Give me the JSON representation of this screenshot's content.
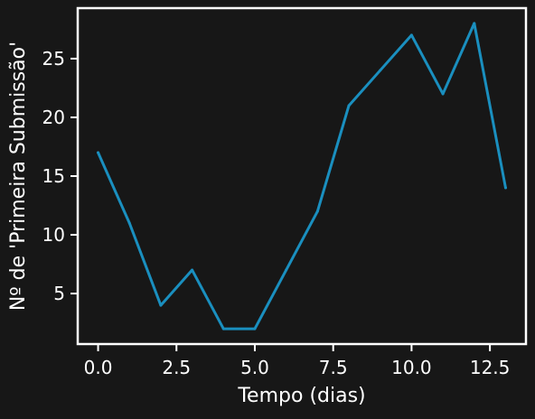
{
  "chart_data": {
    "type": "line",
    "title": "",
    "xlabel": "Tempo (dias)",
    "ylabel": "Nº de 'Primeira Submissão'",
    "x": [
      0,
      1,
      2,
      3,
      4,
      5,
      6,
      7,
      8,
      9,
      10,
      11,
      12,
      13
    ],
    "series": [
      {
        "values": [
          17,
          11,
          4,
          7,
          2,
          2,
          7,
          12,
          21,
          24,
          27,
          22,
          28,
          14
        ],
        "color": "#1a8fbf"
      }
    ],
    "xlim": [
      -0.65,
      13.65
    ],
    "ylim": [
      0.7,
      29.3
    ],
    "xticks": [
      0,
      2.5,
      5,
      7.5,
      10,
      12.5
    ],
    "xtick_labels": [
      "0.0",
      "2.5",
      "5.0",
      "7.5",
      "10.0",
      "12.5"
    ],
    "yticks": [
      5,
      10,
      15,
      20,
      25
    ],
    "ytick_labels": [
      "5",
      "10",
      "15",
      "20",
      "25"
    ],
    "grid": false,
    "background_color": "#171717",
    "axes_color": "#ffffff"
  }
}
